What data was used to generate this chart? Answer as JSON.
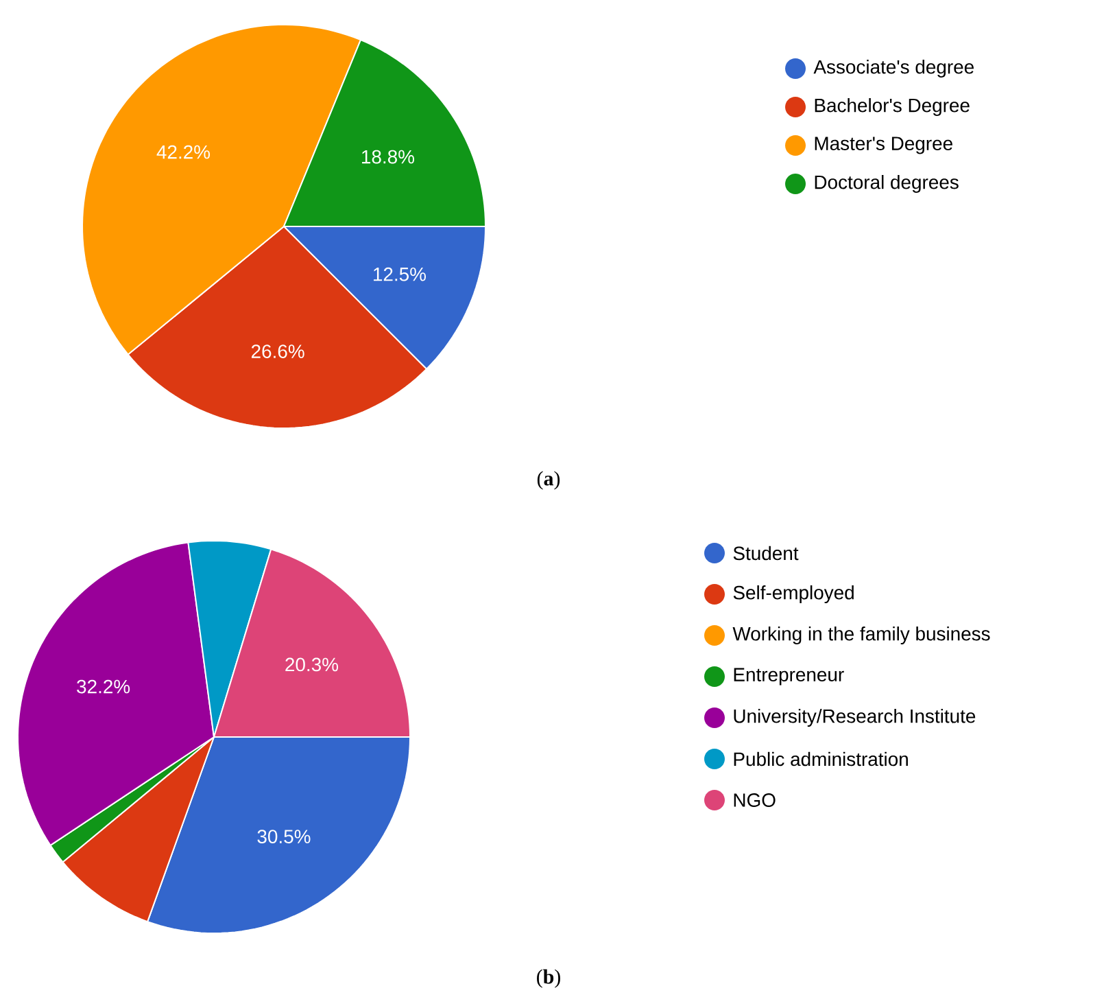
{
  "chart_data": [
    {
      "type": "pie",
      "categories": [
        "Associate's degree",
        "Bachelor's Degree",
        "Master's Degree",
        "Doctoral degrees"
      ],
      "values": [
        12.5,
        26.6,
        42.2,
        18.8
      ],
      "colors": [
        "#3366cc",
        "#dc3912",
        "#ff9900",
        "#109618"
      ],
      "value_labels": [
        "12.5%",
        "26.6%",
        "42.2%",
        "18.8%"
      ],
      "legend": "right",
      "annotations": [
        "(**a**)"
      ]
    },
    {
      "type": "pie",
      "categories": [
        "Student",
        "Self-employed",
        "Working in the family business",
        "Entrepreneur",
        "University/Research Institute",
        "Public administration",
        "NGO"
      ],
      "values": [
        30.5,
        8.5,
        0,
        1.7,
        32.2,
        6.8,
        20.3
      ],
      "colors": [
        "#3366cc",
        "#dc3912",
        "#ff9900",
        "#109618",
        "#990099",
        "#0099c6",
        "#dd4477"
      ],
      "value_labels": [
        "30.5%",
        null,
        null,
        null,
        "32.2%",
        null,
        "20.3%"
      ],
      "legend": "right",
      "annotations": [
        "(**b**)"
      ]
    }
  ]
}
